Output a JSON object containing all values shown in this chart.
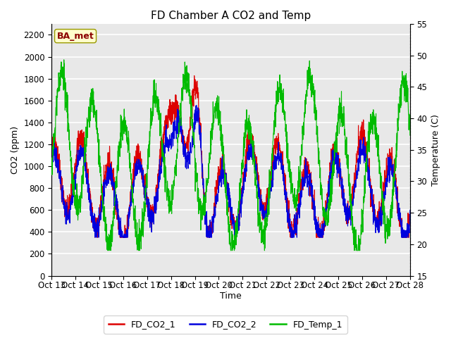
{
  "title": "FD Chamber A CO2 and Temp",
  "xlabel": "Time",
  "ylabel_left": "CO2 (ppm)",
  "ylabel_right": "Temperature (C)",
  "ylim_left": [
    0,
    2300
  ],
  "ylim_right": [
    15,
    55
  ],
  "yticks_left": [
    0,
    200,
    400,
    600,
    800,
    1000,
    1200,
    1400,
    1600,
    1800,
    2000,
    2200
  ],
  "yticks_right": [
    15,
    20,
    25,
    30,
    35,
    40,
    45,
    50,
    55
  ],
  "color_co2_1": "#dd0000",
  "color_co2_2": "#0000dd",
  "color_temp": "#00bb00",
  "legend_labels": [
    "FD_CO2_1",
    "FD_CO2_2",
    "FD_Temp_1"
  ],
  "annotation_text": "BA_met",
  "annotation_color": "#8b0000",
  "annotation_bg": "#ffffcc",
  "background_color": "#e8e8e8",
  "grid_color": "#ffffff",
  "title_fontsize": 11,
  "axis_fontsize": 9,
  "tick_fontsize": 8.5,
  "n_days": 15,
  "xlabels": [
    "Oct 13",
    "Oct 14",
    "Oct 15",
    "Oct 16",
    "Oct 17",
    "Oct 18",
    "Oct 19",
    "Oct 20",
    "Oct 21",
    "Oct 22",
    "Oct 23",
    "Oct 24",
    "Oct 25",
    "Oct 26",
    "Oct 27",
    "Oct 28"
  ]
}
